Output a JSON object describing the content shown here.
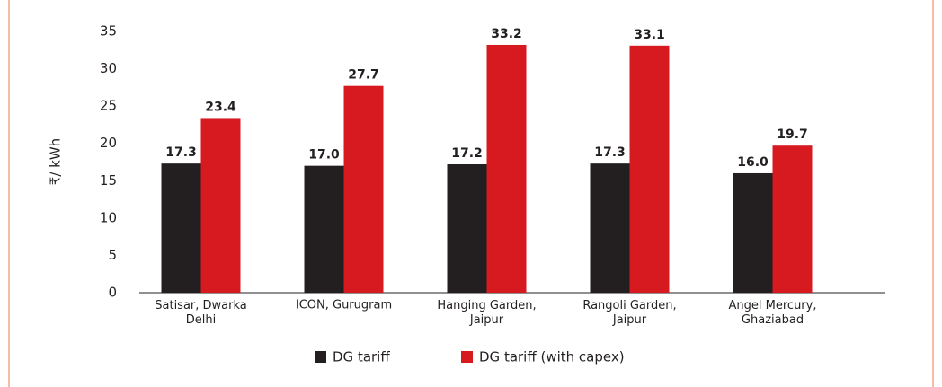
{
  "chart_data": {
    "type": "bar",
    "y_label": "₹/ kWh",
    "categories": [
      "Satisar, Dwarka\nDelhi",
      "ICON, Gurugram",
      "Hanging Garden,\nJaipur",
      "Rangoli Garden,\nJaipur",
      "Angel Mercury,\nGhaziabad"
    ],
    "series": [
      {
        "name": "DG tariff",
        "color": "#231f20",
        "values": [
          17.3,
          17,
          17.2,
          17.3,
          16
        ],
        "value_labels": [
          "17.3",
          "17.0",
          "17.2",
          "17.3",
          "16.0"
        ]
      },
      {
        "name": "DG tariff (with capex)",
        "color": "#d71920",
        "values": [
          23.4,
          27.7,
          33.2,
          33.1,
          19.7
        ],
        "value_labels": [
          "23.4",
          "27.7",
          "33.2",
          "33.1",
          "19.7"
        ]
      }
    ],
    "ylim": [
      0,
      35
    ],
    "yticks": [
      0,
      5,
      10,
      15,
      20,
      25,
      30,
      35
    ]
  }
}
